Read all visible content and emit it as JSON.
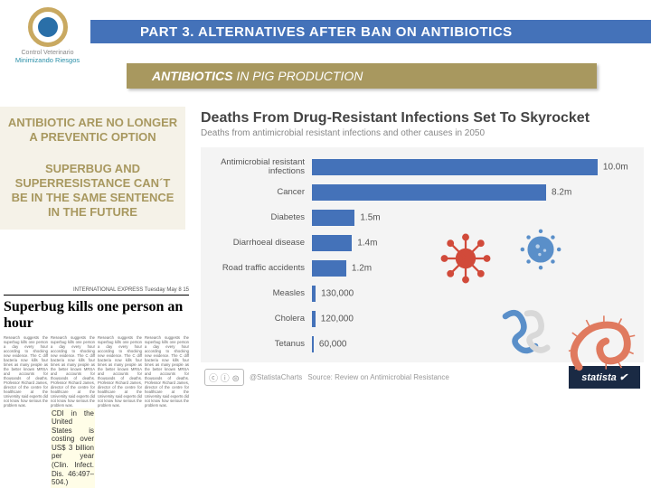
{
  "logo": {
    "line1": "Control Veterinario",
    "line2": "Minimizando Riesgos"
  },
  "title": "PART 3. ALTERNATIVES AFTER BAN ON ANTIBIOTICS",
  "subtitle_bold": "ANTIBIOTICS",
  "subtitle_rest": " IN PIG PRODUCTION",
  "left": {
    "p1": "ANTIBIOTIC ARE NO LONGER A PREVENTIC OPTION",
    "p2": "SUPERBUG AND SUPERRESISTANCE CAN´T BE IN THE SAME SENTENCE IN THE FUTURE"
  },
  "news": {
    "tag": "INTERNATIONAL EXPRESS   Tuesday May 8   15",
    "headline": "Superbug kills one person an hour",
    "highlight": "CDI in the United States is costing over US$ 3 billion per year (Clin. Infect. Dis. 46:497–504.)",
    "filler": "Research suggests the superbug kills one person a day every hour according to shocking new evidence. The C diff bacteria now kills four times as many people as the better known MRSA and accounts for thousands of deaths. Professor Richard James, director of the centre for healthcare at the University said experts did not know how serious the problem was."
  },
  "chart": {
    "title": "Deaths From Drug-Resistant Infections Set To Skyrocket",
    "subtitle": "Deaths from antimicrobial resistant infections and other causes in 2050",
    "max": 10.0,
    "bar_color": "#4472b9",
    "bg": "#f4f4f4",
    "rows": [
      {
        "label": "Antimicrobial resistant infections",
        "value": 10.0,
        "display": "10.0m"
      },
      {
        "label": "Cancer",
        "value": 8.2,
        "display": "8.2m"
      },
      {
        "label": "Diabetes",
        "value": 1.5,
        "display": "1.5m"
      },
      {
        "label": "Diarrhoeal disease",
        "value": 1.4,
        "display": "1.4m"
      },
      {
        "label": "Road traffic accidents",
        "value": 1.2,
        "display": "1.2m"
      },
      {
        "label": "Measles",
        "value": 0.13,
        "display": "130,000"
      },
      {
        "label": "Cholera",
        "value": 0.12,
        "display": "120,000"
      },
      {
        "label": "Tetanus",
        "value": 0.06,
        "display": "60,000"
      }
    ],
    "cc": "ⓒ ⓘ ⊜",
    "handle": "@StatistaCharts",
    "source": "Source: Review on Antimicrobial Resistance",
    "brand": "statista ✔"
  },
  "colors": {
    "virus_red": "#d14a3a",
    "virus_blue": "#5a8fc9",
    "worm": "#e07a5f",
    "squig_blue": "#5a8fc9",
    "squig_grey": "#d8d8d8"
  }
}
